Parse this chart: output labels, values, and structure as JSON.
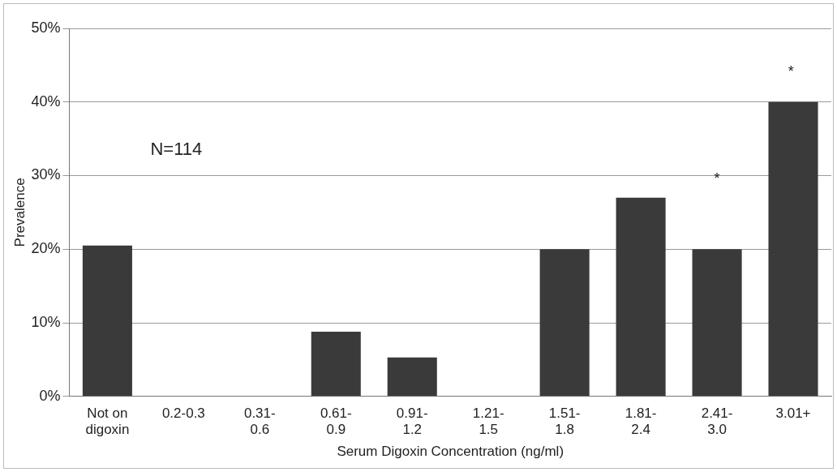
{
  "chart_data": {
    "type": "bar",
    "xlabel": "Serum Digoxin Concentration (ng/ml)",
    "ylabel": "Prevalence",
    "categories": [
      "Not on digoxin",
      "0.2-0.3",
      "0.31-0.6",
      "0.61-0.9",
      "0.91-1.2",
      "1.21-1.5",
      "1.51-1.8",
      "1.81-2.4",
      "2.41-3.0",
      "3.01+"
    ],
    "values": [
      20.5,
      0,
      0,
      8.8,
      5.3,
      0,
      20,
      27,
      20,
      40
    ],
    "color": "#3a3a3a",
    "ylim": [
      0,
      50
    ],
    "yticks": [
      {
        "value": 0,
        "label": "0%"
      },
      {
        "value": 10,
        "label": "10%"
      },
      {
        "value": 20,
        "label": "20%"
      },
      {
        "value": 30,
        "label": "30%"
      },
      {
        "value": 40,
        "label": "40%"
      },
      {
        "value": 50,
        "label": "50%"
      }
    ],
    "grid": "y",
    "annotations": [
      "N=114",
      "*",
      "*"
    ]
  }
}
